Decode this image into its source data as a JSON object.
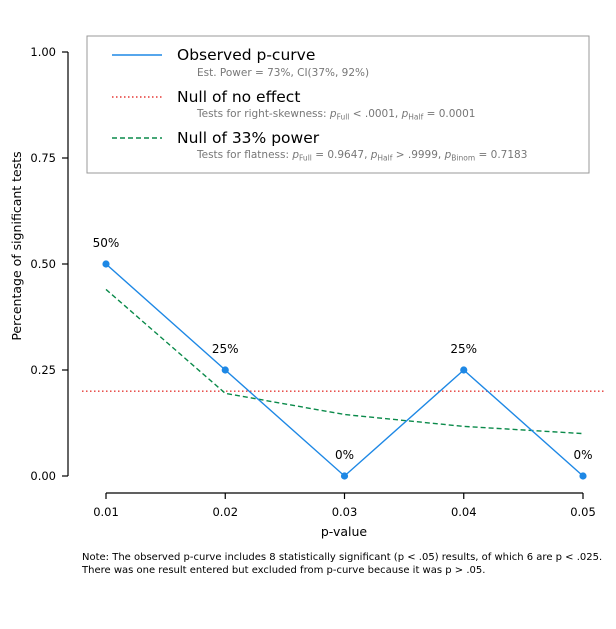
{
  "chart_data": {
    "type": "line",
    "x": [
      0.01,
      0.02,
      0.03,
      0.04,
      0.05
    ],
    "xticks": [
      "0.01",
      "0.02",
      "0.03",
      "0.04",
      "0.05"
    ],
    "xlim": [
      0.0075,
      0.052
    ],
    "ylim": [
      -0.04,
      1.0
    ],
    "yticks": [
      0.0,
      0.25,
      0.5,
      0.75,
      1.0
    ],
    "ytick_labels": [
      "0.00",
      "0.25",
      "0.50",
      "0.75",
      "1.00"
    ],
    "xlabel": "p-value",
    "ylabel": "Percentage of significant tests",
    "grid": false,
    "legend_position": "top",
    "series": [
      {
        "name": "Observed p-curve",
        "style": "solid-markers",
        "color": "#1e88e5",
        "values": [
          0.5,
          0.25,
          0.0,
          0.25,
          0.0
        ],
        "point_labels": [
          "50%",
          "25%",
          "0%",
          "25%",
          "0%"
        ],
        "legend_subtitle": "Est. Power = 73%, CI(37%, 92%)"
      },
      {
        "name": "Null of no effect",
        "style": "dotted",
        "color": "#e53935",
        "values": [
          0.2,
          0.2,
          0.2,
          0.2,
          0.2
        ],
        "legend_subtitle_parts": {
          "prefix": "Tests for right-skewness: ",
          "full_sub": "Full",
          "full_value": " < .0001, ",
          "half_sub": "Half",
          "half_value": " = 0.0001"
        }
      },
      {
        "name": "Null of 33% power",
        "style": "dashed",
        "color": "#0a8a4a",
        "values": [
          0.44,
          0.195,
          0.145,
          0.117,
          0.1
        ],
        "legend_subtitle_parts": {
          "prefix": "Tests for flatness: ",
          "full_sub": "Full",
          "full_value": " = 0.9647, ",
          "half_sub": "Half",
          "half_value": " > .9999, ",
          "binom_sub": "Binom",
          "binom_value": " = 0.7183"
        }
      }
    ]
  },
  "note": {
    "line1": "Note: The observed p-curve includes 8 statistically significant (p < .05) results, of which 6 are p < .025.",
    "line2": "There was one result entered but excluded from p-curve because it was p > .05."
  }
}
